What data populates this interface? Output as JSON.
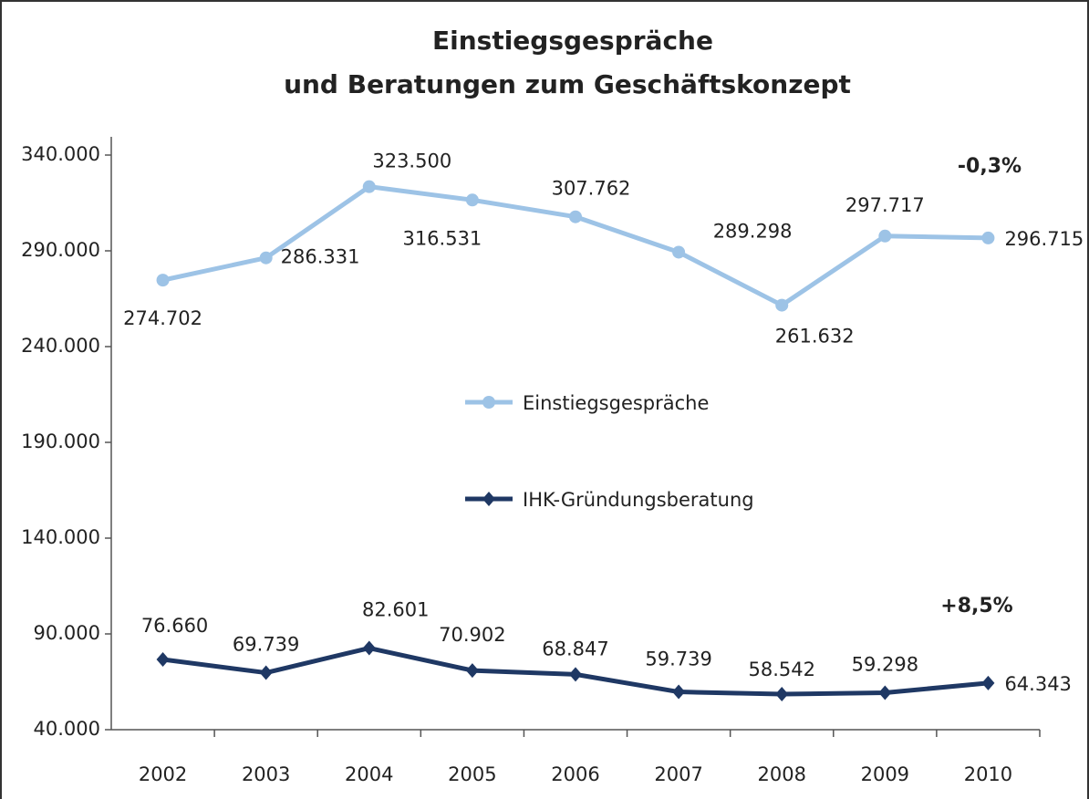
{
  "chart_data": {
    "type": "line",
    "title": "Einstiegsgespräche",
    "subtitle": "und Beratungen zum Geschäftskonzept",
    "categories": [
      "2002",
      "2003",
      "2004",
      "2005",
      "2006",
      "2007",
      "2008",
      "2009",
      "2010"
    ],
    "series": [
      {
        "name": "Einstiegsgespräche",
        "color": "#9dc3e6",
        "marker": "circle",
        "values": [
          274702,
          286331,
          323500,
          316531,
          307762,
          289298,
          261632,
          297717,
          296715
        ],
        "value_labels": [
          "274.702",
          "286.331",
          "323.500",
          "316.531",
          "307.762",
          "289.298",
          "261.632",
          "297.717",
          "296.715"
        ]
      },
      {
        "name": "IHK-Gründungsberatung",
        "color": "#1f3864",
        "marker": "diamond",
        "values": [
          76660,
          69739,
          82601,
          70902,
          68847,
          59739,
          58542,
          59298,
          64343
        ],
        "value_labels": [
          "76.660",
          "69.739",
          "82.601",
          "70.902",
          "68.847",
          "59.739",
          "58.542",
          "59.298",
          "64.343"
        ]
      }
    ],
    "ylim": [
      40000,
      340000
    ],
    "yticks": [
      {
        "value": 40000,
        "label": "40.000"
      },
      {
        "value": 90000,
        "label": "90.000"
      },
      {
        "value": 140000,
        "label": "140.000"
      },
      {
        "value": 190000,
        "label": "190.000"
      },
      {
        "value": 240000,
        "label": "240.000"
      },
      {
        "value": 290000,
        "label": "290.000"
      },
      {
        "value": 340000,
        "label": "340.000"
      }
    ],
    "annotations": [
      "-0,3%",
      "+8,5%"
    ],
    "legend": "center"
  }
}
